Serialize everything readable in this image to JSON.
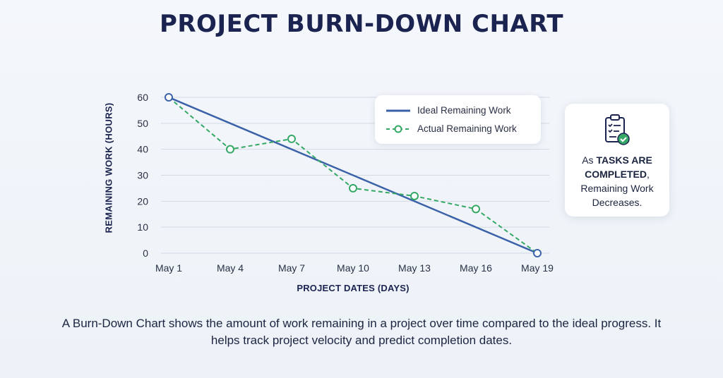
{
  "title": "PROJECT BURN-DOWN CHART",
  "chart_data": {
    "type": "line",
    "title": "PROJECT BURN-DOWN CHART",
    "xlabel": "PROJECT DATES (DAYS)",
    "ylabel": "REMAINING WORK (HOURS)",
    "categories": [
      "May 1",
      "May 4",
      "May 7",
      "May 10",
      "May 13",
      "May 16",
      "May 19"
    ],
    "ylim": [
      0,
      60
    ],
    "yticks": [
      0,
      10,
      20,
      30,
      40,
      50,
      60
    ],
    "grid": true,
    "legend_position": "top-right",
    "series": [
      {
        "name": "Ideal Remaining Work",
        "style": "solid",
        "color": "#3b62a8",
        "points": [
          {
            "x": "May 1",
            "y": 60
          },
          {
            "x": "May 19",
            "y": 0
          }
        ]
      },
      {
        "name": "Actual Remaining Work",
        "style": "dashed-markers",
        "color": "#35a866",
        "values": [
          60,
          40,
          44,
          25,
          22,
          17,
          0
        ]
      }
    ]
  },
  "legend": {
    "ideal_label": "Ideal Remaining Work",
    "actual_label": "Actual Remaining Work"
  },
  "callout": {
    "prefix": "As ",
    "bold": "TASKS ARE COMPLETED",
    "suffix": ",",
    "line2": "Remaining Work Decreases.",
    "icon": "clipboard-check-icon"
  },
  "description": "A Burn-Down Chart shows the amount of work remaining in a project over time compared to the ideal progress. It helps track project velocity and predict completion dates."
}
